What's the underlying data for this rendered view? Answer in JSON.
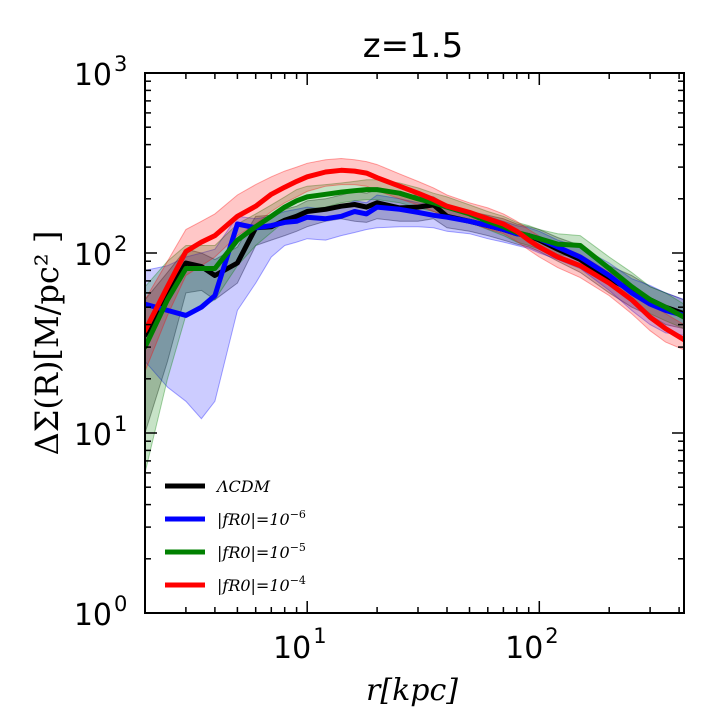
{
  "chart_data": {
    "type": "line",
    "title": "z=1.5",
    "xlabel": "r[kpc]",
    "ylabel": "ΔΣ(R)[M/pc² ]",
    "xscale": "log",
    "yscale": "log",
    "xlim": [
      2,
      420
    ],
    "ylim": [
      1,
      1000
    ],
    "x_ticks": [
      {
        "value": 10,
        "base": "10",
        "exp": "1"
      },
      {
        "value": 100,
        "base": "10",
        "exp": "2"
      }
    ],
    "y_ticks": [
      {
        "value": 1,
        "base": "10",
        "exp": "0"
      },
      {
        "value": 10,
        "base": "10",
        "exp": "1"
      },
      {
        "value": 100,
        "base": "10",
        "exp": "2"
      },
      {
        "value": 1000,
        "base": "10",
        "exp": "3"
      }
    ],
    "legend_position": "lower-left",
    "series": [
      {
        "name": "ΛCDM",
        "legend_base": "ΛCDM",
        "legend_exp": "",
        "color": "#000000",
        "band_alpha": 0.22,
        "x": [
          2,
          2.5,
          3,
          3.5,
          4,
          5,
          6,
          7,
          8,
          9,
          10,
          12,
          14,
          16,
          18,
          20,
          25,
          30,
          35,
          40,
          50,
          60,
          70,
          80,
          90,
          100,
          120,
          150,
          200,
          250,
          300,
          350,
          420
        ],
        "y": [
          35,
          58,
          88,
          84,
          75,
          88,
          138,
          140,
          152,
          160,
          170,
          175,
          182,
          186,
          180,
          190,
          178,
          180,
          185,
          160,
          150,
          142,
          135,
          128,
          125,
          118,
          105,
          92,
          72,
          62,
          55,
          50,
          46
        ],
        "upper": [
          55,
          78,
          105,
          100,
          92,
          108,
          160,
          162,
          175,
          182,
          195,
          200,
          210,
          220,
          215,
          225,
          210,
          210,
          205,
          185,
          170,
          162,
          155,
          145,
          140,
          135,
          122,
          110,
          85,
          75,
          65,
          60,
          55
        ],
        "lower": [
          10,
          25,
          60,
          62,
          55,
          68,
          110,
          118,
          125,
          132,
          140,
          150,
          155,
          150,
          148,
          155,
          150,
          150,
          155,
          138,
          132,
          125,
          118,
          112,
          108,
          102,
          90,
          78,
          60,
          50,
          45,
          40,
          38
        ]
      },
      {
        "name": "|f_R0|=10^-6",
        "legend_base": "|fR0|=10",
        "legend_exp": "−6",
        "color": "#0000ff",
        "band_alpha": 0.2,
        "x": [
          2,
          2.5,
          3,
          3.5,
          4,
          5,
          6,
          7,
          8,
          9,
          10,
          12,
          14,
          16,
          18,
          20,
          25,
          30,
          35,
          40,
          50,
          60,
          70,
          80,
          90,
          100,
          120,
          150,
          200,
          250,
          300,
          350,
          420
        ],
        "y": [
          52,
          48,
          45,
          50,
          58,
          145,
          138,
          142,
          148,
          150,
          158,
          155,
          160,
          170,
          165,
          180,
          175,
          168,
          162,
          158,
          150,
          142,
          135,
          128,
          125,
          120,
          108,
          95,
          75,
          60,
          52,
          48,
          45
        ],
        "upper": [
          80,
          85,
          95,
          100,
          105,
          160,
          155,
          160,
          170,
          175,
          180,
          175,
          180,
          195,
          190,
          210,
          200,
          190,
          185,
          180,
          170,
          160,
          150,
          142,
          138,
          132,
          118,
          108,
          88,
          72,
          66,
          60,
          55
        ],
        "lower": [
          25,
          18,
          15,
          12,
          15,
          48,
          68,
          95,
          110,
          115,
          120,
          118,
          125,
          130,
          135,
          138,
          140,
          140,
          138,
          132,
          128,
          120,
          115,
          110,
          106,
          100,
          92,
          82,
          62,
          48,
          40,
          36,
          35
        ]
      },
      {
        "name": "|f_R0|=10^-5",
        "legend_base": "|fR0|=10",
        "legend_exp": "−5",
        "color": "#008000",
        "band_alpha": 0.22,
        "x": [
          2,
          2.5,
          3,
          3.5,
          4,
          5,
          6,
          7,
          8,
          9,
          10,
          12,
          14,
          16,
          18,
          20,
          25,
          30,
          35,
          40,
          50,
          60,
          70,
          80,
          90,
          100,
          120,
          150,
          200,
          250,
          300,
          350,
          420
        ],
        "y": [
          30,
          55,
          82,
          82,
          82,
          118,
          140,
          160,
          180,
          195,
          205,
          212,
          218,
          222,
          225,
          225,
          215,
          200,
          190,
          180,
          165,
          150,
          140,
          130,
          125,
          120,
          112,
          110,
          82,
          65,
          55,
          50,
          44
        ],
        "upper": [
          65,
          90,
          110,
          110,
          110,
          145,
          165,
          185,
          205,
          225,
          235,
          240,
          245,
          250,
          255,
          255,
          245,
          230,
          215,
          205,
          185,
          170,
          160,
          148,
          142,
          135,
          128,
          125,
          95,
          78,
          65,
          60,
          52
        ],
        "lower": [
          6,
          20,
          45,
          50,
          55,
          85,
          110,
          130,
          150,
          165,
          175,
          180,
          190,
          195,
          198,
          198,
          190,
          178,
          170,
          160,
          148,
          135,
          125,
          115,
          110,
          105,
          98,
          95,
          70,
          55,
          46,
          42,
          38
        ]
      },
      {
        "name": "|f_R0|=10^-4",
        "legend_base": "|fR0|=10",
        "legend_exp": "−4",
        "color": "#ff0000",
        "band_alpha": 0.22,
        "x": [
          2,
          2.5,
          3,
          3.5,
          4,
          5,
          6,
          7,
          8,
          9,
          10,
          12,
          14,
          16,
          18,
          20,
          25,
          30,
          35,
          40,
          50,
          60,
          70,
          80,
          90,
          100,
          120,
          150,
          200,
          250,
          300,
          350,
          420
        ],
        "y": [
          37,
          65,
          102,
          115,
          125,
          160,
          182,
          212,
          232,
          250,
          265,
          282,
          288,
          285,
          278,
          262,
          235,
          215,
          198,
          182,
          168,
          155,
          145,
          132,
          118,
          108,
          95,
          85,
          68,
          55,
          44,
          38,
          33
        ],
        "upper": [
          55,
          90,
          135,
          150,
          165,
          210,
          240,
          265,
          285,
          300,
          315,
          330,
          335,
          330,
          322,
          310,
          275,
          250,
          230,
          210,
          190,
          178,
          165,
          150,
          135,
          124,
          110,
          98,
          78,
          64,
          52,
          46,
          40
        ],
        "lower": [
          22,
          45,
          75,
          85,
          95,
          125,
          145,
          170,
          190,
          205,
          220,
          235,
          240,
          240,
          235,
          222,
          200,
          185,
          170,
          158,
          148,
          136,
          128,
          116,
          104,
          95,
          83,
          73,
          58,
          46,
          37,
          32,
          29
        ]
      }
    ]
  }
}
